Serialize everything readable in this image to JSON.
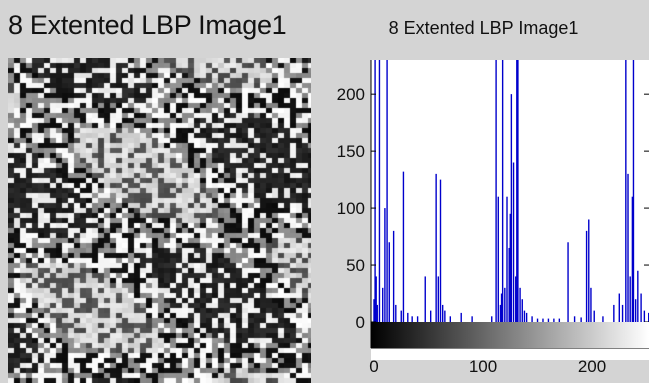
{
  "panels": {
    "left": {
      "title": "8 Extented LBP Image1"
    },
    "right": {
      "title": "8 Extented LBP Image1"
    }
  },
  "colors": {
    "background": "#d4d4d4",
    "bar": "#0000cc",
    "axes": "#000000"
  },
  "chart_data": {
    "type": "bar",
    "title": "8 Extented LBP Image1",
    "xlabel": "",
    "ylabel": "",
    "xlim": [
      0,
      255
    ],
    "ylim": [
      0,
      230
    ],
    "xticks": [
      0,
      100,
      200
    ],
    "yticks": [
      0,
      50,
      100,
      150,
      200
    ],
    "grid": false,
    "colorbar": "grayscale gradient black to white",
    "series": [
      {
        "x": [
          0,
          1,
          2,
          3,
          5,
          8,
          10,
          12,
          14,
          18,
          20,
          25,
          27,
          31,
          35,
          40,
          47,
          52,
          57,
          59,
          61,
          63,
          65,
          70,
          80,
          90,
          108,
          112,
          114,
          116,
          117,
          118,
          120,
          122,
          124,
          125,
          126,
          128,
          130,
          131,
          132,
          134,
          136,
          138,
          140,
          145,
          150,
          155,
          160,
          165,
          170,
          178,
          184,
          190,
          195,
          197,
          199,
          202,
          210,
          220,
          225,
          228,
          231,
          233,
          235,
          237,
          238,
          240,
          242,
          245,
          248,
          252
        ],
        "values": [
          20,
          230,
          40,
          15,
          230,
          30,
          100,
          230,
          70,
          80,
          15,
          10,
          132,
          8,
          5,
          5,
          40,
          10,
          130,
          40,
          125,
          15,
          10,
          5,
          8,
          5,
          5,
          230,
          110,
          15,
          25,
          230,
          30,
          110,
          65,
          95,
          200,
          140,
          40,
          230,
          230,
          30,
          20,
          10,
          8,
          5,
          3,
          3,
          3,
          3,
          3,
          70,
          5,
          4,
          80,
          90,
          30,
          10,
          5,
          15,
          25,
          15,
          230,
          130,
          40,
          110,
          230,
          20,
          45,
          25,
          10,
          8
        ]
      }
    ]
  }
}
